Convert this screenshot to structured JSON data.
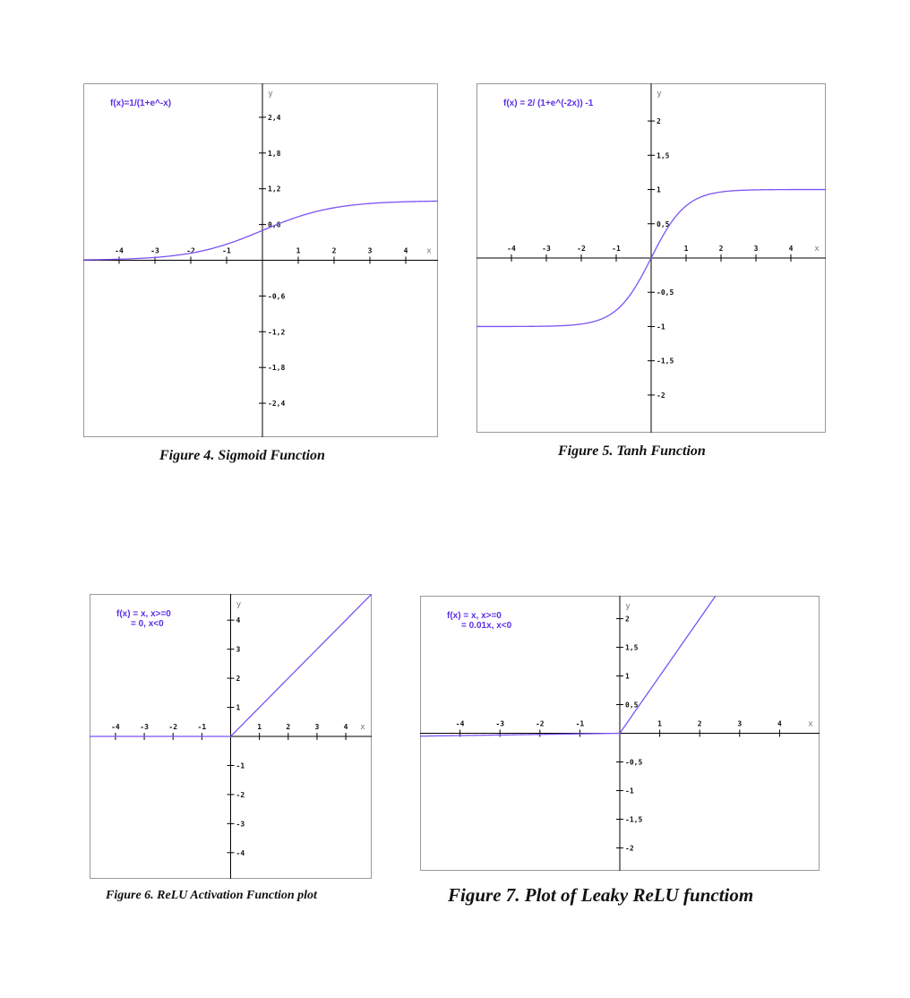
{
  "colors": {
    "curve": "#7b52f5",
    "formula": "#5a2fe6",
    "frame": "#9a9a9a"
  },
  "chart_data": [
    {
      "id": "sigmoid",
      "type": "line",
      "caption": "Figure 4. Sigmoid Function",
      "formula_lines": [
        "f(x)=1/(1+e^-x)"
      ],
      "function": "sigmoid",
      "xlabel": "x",
      "ylabel": "y",
      "xlim": [
        -5.0,
        4.9
      ],
      "ylim": [
        -2.97,
        2.97
      ],
      "x_ticks": [
        "-4",
        "-3",
        "-2",
        "-1",
        "1",
        "2",
        "3",
        "4"
      ],
      "y_ticks": [
        "2,4",
        "1,8",
        "1,2",
        "0,6",
        "-0,6",
        "-1,2",
        "-1,8",
        "-2,4"
      ],
      "series": [
        {
          "x": [
            -5,
            -4,
            -3,
            -2,
            -1,
            0,
            1,
            2,
            3,
            4,
            4.9
          ],
          "y": [
            0.007,
            0.018,
            0.047,
            0.119,
            0.269,
            0.5,
            0.731,
            0.881,
            0.953,
            0.982,
            0.993
          ]
        }
      ]
    },
    {
      "id": "tanh",
      "type": "line",
      "caption": "Figure 5. Tanh Function",
      "formula_lines": [
        "f(x) = 2/ (1+e^(-2x)) -1"
      ],
      "function": "tanh",
      "xlabel": "x",
      "ylabel": "y",
      "xlim": [
        -5.0,
        5.0
      ],
      "ylim": [
        -2.55,
        2.55
      ],
      "x_ticks": [
        "-4",
        "-3",
        "-2",
        "-1",
        "1",
        "2",
        "3",
        "4"
      ],
      "y_ticks": [
        "2",
        "1,5",
        "1",
        "0,5",
        "-0,5",
        "-1",
        "-1,5",
        "-2"
      ],
      "series": [
        {
          "x": [
            -5,
            -4,
            -3,
            -2,
            -1,
            0,
            1,
            2,
            3,
            4,
            5
          ],
          "y": [
            -1,
            -0.999,
            -0.995,
            -0.964,
            -0.762,
            0,
            0.762,
            0.964,
            0.995,
            0.999,
            1
          ]
        }
      ]
    },
    {
      "id": "relu",
      "type": "line",
      "caption": "Figure 6. ReLU Activation Function plot",
      "formula_lines": [
        "f(x) = x, x>=0",
        "= 0, x<0"
      ],
      "function": "relu",
      "xlabel": "x",
      "ylabel": "y",
      "xlim": [
        -4.9,
        4.9
      ],
      "ylim": [
        -4.9,
        4.9
      ],
      "x_ticks": [
        "-4",
        "-3",
        "-2",
        "-1",
        "1",
        "2",
        "3",
        "4"
      ],
      "y_ticks": [
        "4",
        "3",
        "2",
        "1",
        "-1",
        "-2",
        "-3",
        "-4"
      ],
      "series": [
        {
          "x": [
            -4.9,
            0,
            4.9
          ],
          "y": [
            0,
            0,
            4.9
          ]
        }
      ]
    },
    {
      "id": "leaky_relu",
      "type": "line",
      "caption": "Figure 7. Plot of Leaky ReLU functiom",
      "formula_lines": [
        "f(x) = x, x>=0",
        "= 0.01x, x<0"
      ],
      "function": "leaky_relu",
      "xlabel": "x",
      "ylabel": "y",
      "xlim": [
        -5.0,
        5.0
      ],
      "ylim": [
        -2.4,
        2.4
      ],
      "x_ticks": [
        "-4",
        "-3",
        "-2",
        "-1",
        "1",
        "2",
        "3",
        "4"
      ],
      "y_ticks": [
        "2",
        "1,5",
        "1",
        "0,5",
        "-0,5",
        "-1",
        "-1,5",
        "-2"
      ],
      "series": [
        {
          "x": [
            -5,
            0,
            2.4
          ],
          "y": [
            -0.05,
            0,
            2.4
          ]
        }
      ]
    }
  ]
}
